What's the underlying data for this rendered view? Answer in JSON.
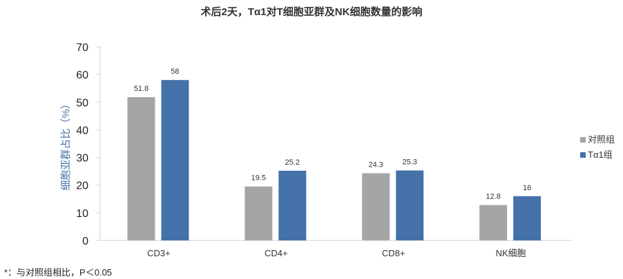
{
  "chart_data": {
    "type": "bar",
    "title": "术后2天，Tα1对T细胞亚群及NK细胞数量的影响",
    "ylabel": "细胞亚群占比（%）",
    "xlabel": "",
    "categories": [
      "CD3+",
      "CD4+",
      "CD8+",
      "NK细胞"
    ],
    "series": [
      {
        "name": "对照组",
        "color": "#a5a5a5",
        "values": [
          51.8,
          19.5,
          24.3,
          12.8
        ],
        "labels": [
          "51.8",
          "19.5",
          "24.3",
          "12.8"
        ]
      },
      {
        "name": "Tα1组",
        "color": "#4472a8",
        "values": [
          58,
          25.2,
          25.3,
          16
        ],
        "labels": [
          "58",
          "25.2",
          "25.3",
          "16"
        ]
      }
    ],
    "ylim": [
      0,
      70
    ],
    "yticks": [
      "0",
      "10",
      "20",
      "30",
      "40",
      "50",
      "60",
      "70"
    ],
    "grid": false,
    "legend_position": "right"
  },
  "footnote": "*：与对照组相比，P＜0.05"
}
